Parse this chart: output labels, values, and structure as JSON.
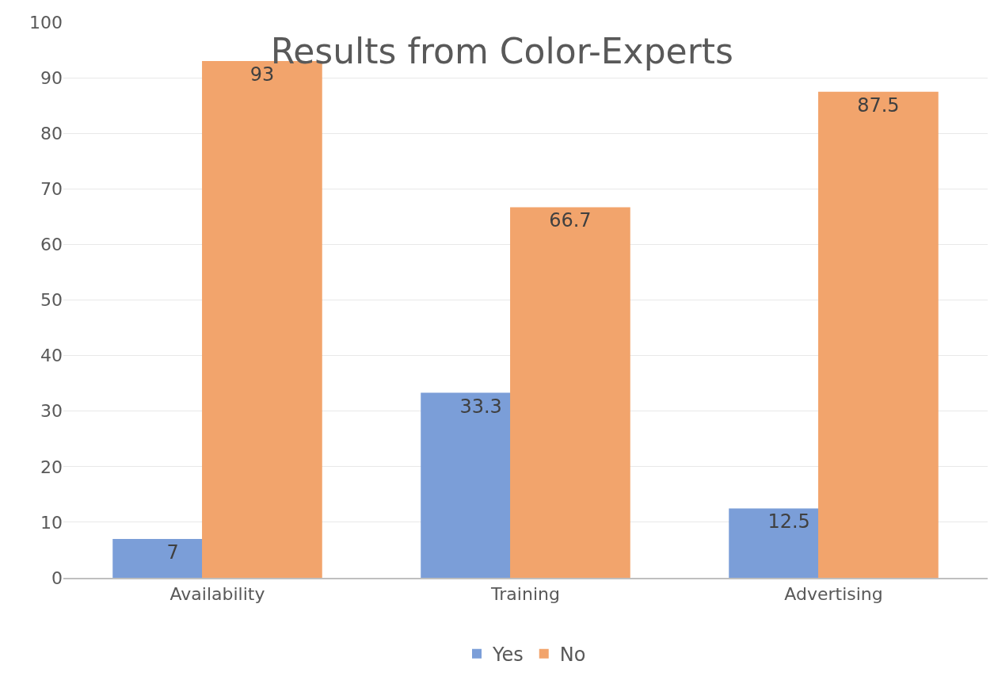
{
  "chart_data": {
    "type": "bar",
    "title": "Results from Color-Experts",
    "categories": [
      "Availability",
      "Training",
      "Advertising"
    ],
    "series": [
      {
        "name": "Yes",
        "color": "#7b9ed8",
        "values": [
          7,
          33.3,
          12.5
        ]
      },
      {
        "name": "No",
        "color": "#f2a46c",
        "values": [
          93,
          66.7,
          87.5
        ]
      }
    ],
    "ylim": [
      0,
      100
    ],
    "yticks": [
      0,
      10,
      20,
      30,
      40,
      50,
      60,
      70,
      80,
      90,
      100
    ],
    "grid": "y",
    "legend": "bottom",
    "data_labels": true
  }
}
